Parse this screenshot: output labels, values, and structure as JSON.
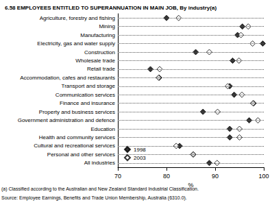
{
  "chart_data": {
    "type": "scatter",
    "title": "6.58 EMPLOYEES ENTITLED TO SUPERANNUATION IN MAIN JOB, By industry(a)",
    "footnote": "(a) Classified according to the Australian and New Zealand Standard Industrial Classification.",
    "source": "Source: Employee Earnings, Benefits and Trade Union Membership, Australia (6310.0).",
    "xlabel": "%",
    "orientation": "horizontal",
    "categories": [
      "Agriculture, forestry and fishing",
      "Mining",
      "Manufacturing",
      "Electricity, gas and water supply",
      "Construction",
      "Wholesale trade",
      "Retail trade",
      "Accommodation, cafes and restaurants",
      "Transport and storage",
      "Communication services",
      "Finance and insurance",
      "Property and business services",
      "Government administration and defence",
      "Education",
      "Health and community services",
      "Cultural and recreational services",
      "Personal and other services",
      "All industries"
    ],
    "series": [
      {
        "name": "1998",
        "color": "#000000",
        "marker": "diamond",
        "values": [
          80.0,
          95.6,
          94.6,
          99.8,
          86.0,
          93.6,
          76.7,
          78.5,
          93.0,
          93.9,
          97.9,
          87.5,
          97.0,
          93.0,
          93.0,
          82.7,
          85.5,
          88.8
        ]
      },
      {
        "name": "2003",
        "color": "#000000",
        "marker": "diamond_open",
        "values": [
          82.5,
          96.8,
          95.3,
          97.7,
          88.8,
          94.9,
          78.6,
          78.4,
          92.6,
          95.5,
          97.8,
          90.5,
          98.8,
          95.0,
          95.0,
          82.0,
          85.5,
          90.4
        ]
      }
    ],
    "xlim": [
      70,
      100
    ],
    "xticks": [
      70,
      80,
      90,
      100
    ],
    "grid": true,
    "legend": "lower left"
  }
}
